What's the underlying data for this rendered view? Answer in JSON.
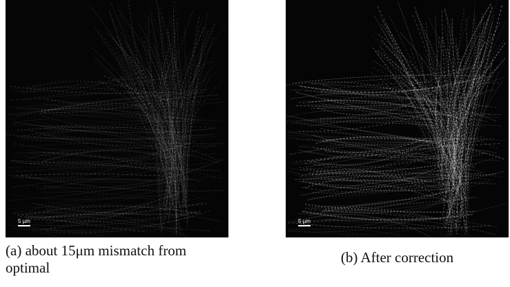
{
  "figures": [
    {
      "scale_bar": "5 µm",
      "label": "(a)",
      "caption": "about 15μm mismatch from optimal"
    },
    {
      "scale_bar": "5 µm",
      "label": "(b)",
      "caption": "After correction"
    }
  ]
}
